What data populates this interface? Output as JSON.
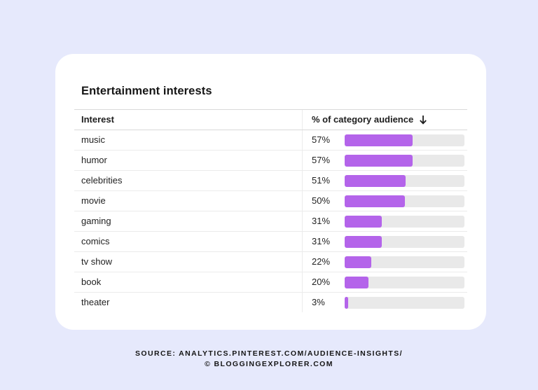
{
  "card": {
    "title": "Entertainment interests",
    "columns": {
      "interest": "Interest",
      "audience": "% of category audience"
    },
    "accent_color": "#b464ea",
    "track_color": "#e9e9e9",
    "sort_icon": "arrow-down-icon",
    "rows": [
      {
        "label": "music",
        "percent_text": "57%",
        "value": 57
      },
      {
        "label": "humor",
        "percent_text": "57%",
        "value": 57
      },
      {
        "label": "celebrities",
        "percent_text": "51%",
        "value": 51
      },
      {
        "label": "movie",
        "percent_text": "50%",
        "value": 50
      },
      {
        "label": "gaming",
        "percent_text": "31%",
        "value": 31
      },
      {
        "label": "comics",
        "percent_text": "31%",
        "value": 31
      },
      {
        "label": "tv show",
        "percent_text": "22%",
        "value": 22
      },
      {
        "label": "book",
        "percent_text": "20%",
        "value": 20
      },
      {
        "label": "theater",
        "percent_text": "3%",
        "value": 3
      }
    ]
  },
  "footer": {
    "source_line": "SOURCE: ANALYTICS.PINTEREST.COM/AUDIENCE-INSIGHTS/",
    "copyright_line": "© BLOGGINGEXPLORER.COM"
  }
}
